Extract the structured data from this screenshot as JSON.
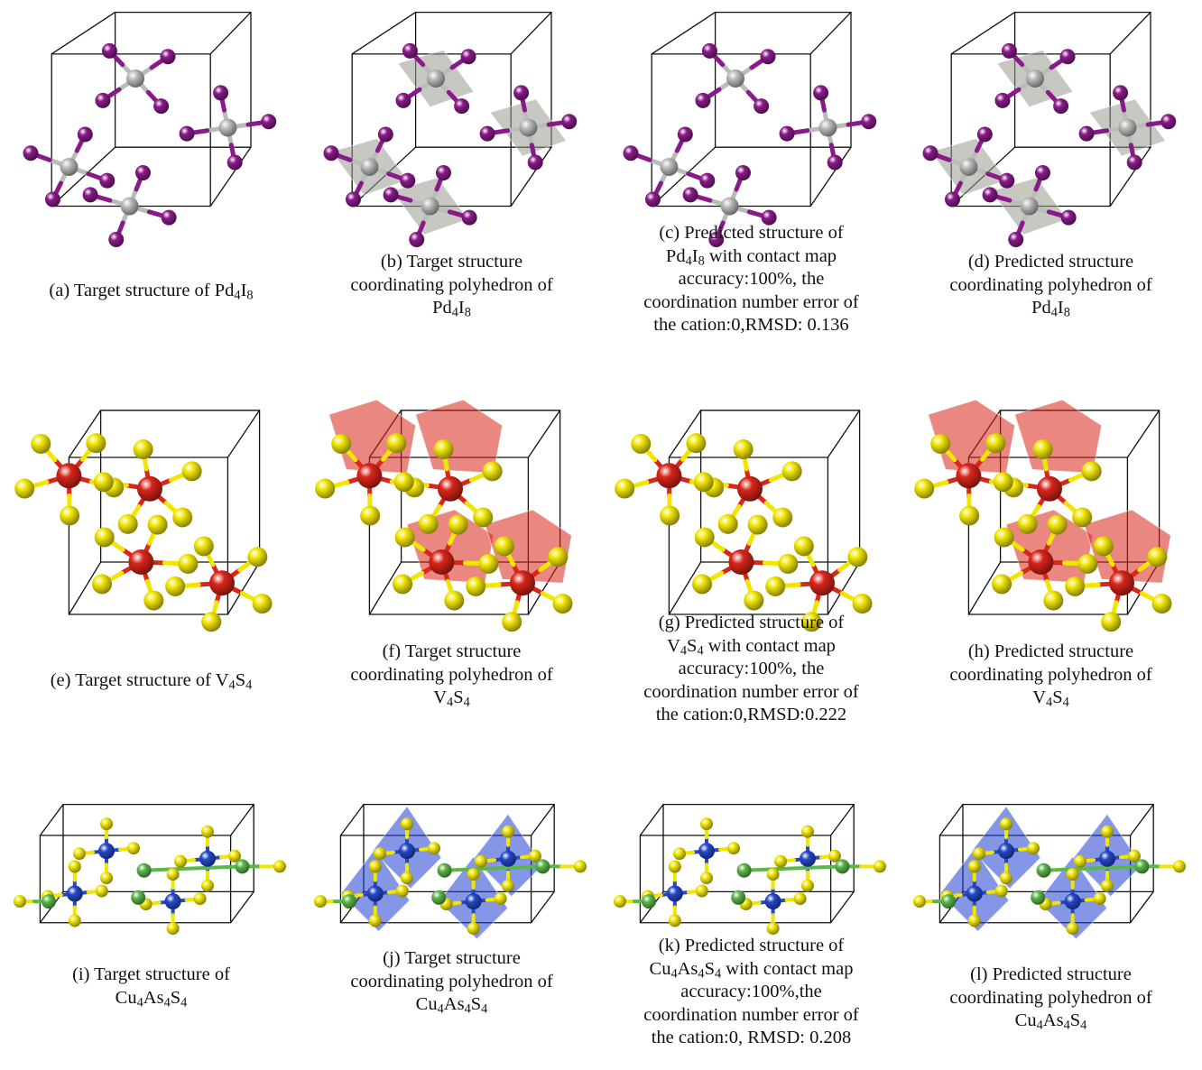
{
  "figure": {
    "colors": {
      "iodine": "#8a1a8a",
      "palladium": "#b9bdb9",
      "sulfur": "#f2e600",
      "vanadium": "#d9251a",
      "copper": "#2448c8",
      "arsenic": "#5ab84a",
      "v_polyhedron": "#d9251a",
      "pd_polyhedron": "#9a9a92",
      "cu_polyhedron": "#1f3fd0",
      "cell_edge": "#111111"
    },
    "panels": [
      {
        "id": "a",
        "icon": "pd4i8-ball-stick",
        "lines": [
          {
            "text": "(a) Target structure of ",
            "formula": "Pd4I8"
          }
        ]
      },
      {
        "id": "b",
        "icon": "pd4i8-polyhedra",
        "lines": [
          {
            "text": "(b) Target structure"
          },
          {
            "text": "coordinating polyhedron of"
          },
          {
            "text": "",
            "formula": "Pd4I8"
          }
        ]
      },
      {
        "id": "c",
        "icon": "pd4i8-ball-stick",
        "lines": [
          {
            "text": "(c) Predicted structure of"
          },
          {
            "text": "",
            "formula": "Pd4I8",
            "after": " with contact map"
          },
          {
            "text": "accuracy:100%, the"
          },
          {
            "text": "coordination number error of"
          },
          {
            "text": "the cation:0,RMSD: 0.136"
          }
        ]
      },
      {
        "id": "d",
        "icon": "pd4i8-polyhedra",
        "lines": [
          {
            "text": "(d) Predicted structure"
          },
          {
            "text": "coordinating polyhedron of"
          },
          {
            "text": "",
            "formula": "Pd4I8"
          }
        ]
      },
      {
        "id": "e",
        "icon": "v4s4-ball-stick",
        "lines": [
          {
            "text": "(e) Target structure of ",
            "formula": "V4S4"
          }
        ]
      },
      {
        "id": "f",
        "icon": "v4s4-polyhedra",
        "lines": [
          {
            "text": "(f) Target structure"
          },
          {
            "text": "coordinating polyhedron of"
          },
          {
            "text": "",
            "formula": "V4S4"
          }
        ]
      },
      {
        "id": "g",
        "icon": "v4s4-ball-stick",
        "lines": [
          {
            "text": "(g) Predicted structure of"
          },
          {
            "text": "",
            "formula": "V4S4",
            "after": " with contact map"
          },
          {
            "text": "accuracy:100%, the"
          },
          {
            "text": "coordination number error of"
          },
          {
            "text": "the cation:0,RMSD:0.222"
          }
        ]
      },
      {
        "id": "h",
        "icon": "v4s4-polyhedra",
        "lines": [
          {
            "text": "(h) Predicted structure"
          },
          {
            "text": "coordinating polyhedron of"
          },
          {
            "text": "",
            "formula": "V4S4"
          }
        ]
      },
      {
        "id": "i",
        "icon": "cu4as4s4-ball-stick",
        "lines": [
          {
            "text": "(i) Target structure of"
          },
          {
            "text": "",
            "formula": "Cu4As4S4"
          }
        ]
      },
      {
        "id": "j",
        "icon": "cu4as4s4-polyhedra",
        "lines": [
          {
            "text": "(j) Target structure"
          },
          {
            "text": "coordinating polyhedron of"
          },
          {
            "text": "",
            "formula": "Cu4As4S4"
          }
        ]
      },
      {
        "id": "k",
        "icon": "cu4as4s4-ball-stick",
        "lines": [
          {
            "text": "(k) Predicted structure of"
          },
          {
            "text": "",
            "formula": "Cu4As4S4",
            "after": " with contact map"
          },
          {
            "text": "accuracy:100%,the"
          },
          {
            "text": "coordination number error of"
          },
          {
            "text": "the cation:0, RMSD: 0.208"
          }
        ]
      },
      {
        "id": "l",
        "icon": "cu4as4s4-polyhedra",
        "lines": [
          {
            "text": "(l) Predicted structure"
          },
          {
            "text": "coordinating polyhedron of"
          },
          {
            "text": "",
            "formula": "Cu4As4S4"
          }
        ]
      }
    ]
  }
}
